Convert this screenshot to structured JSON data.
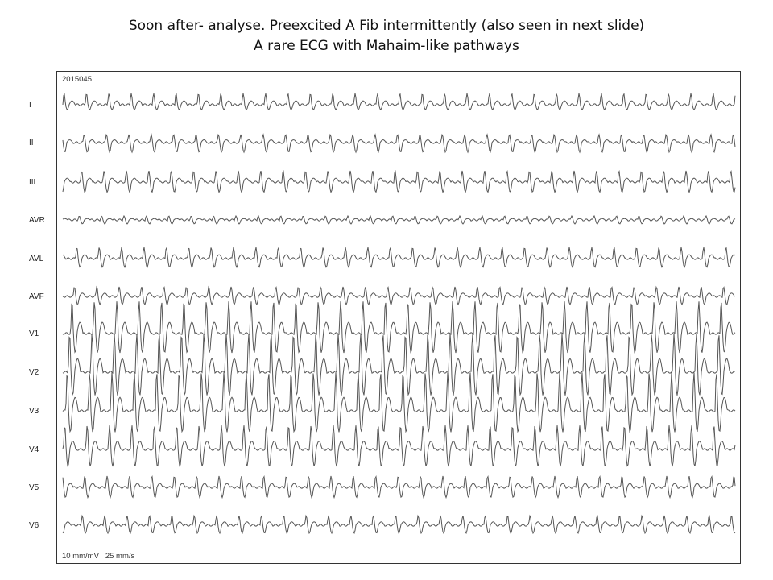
{
  "slide": {
    "title_line1": "Soon after- analyse. Preexcited A Fib intermittently (also seen in next slide)",
    "title_line2": "A rare ECG with Mahaim-like pathways"
  },
  "ecg": {
    "record_id": "2015045",
    "calibration": "10 mm/mV   25 mm/s",
    "leads": [
      "I",
      "II",
      "III",
      "AVR",
      "AVL",
      "AVF",
      "V1",
      "V2",
      "V3",
      "V4",
      "V5",
      "V6"
    ],
    "colors": {
      "trace": "#555555",
      "border": "#333333",
      "text": "#222222"
    }
  }
}
